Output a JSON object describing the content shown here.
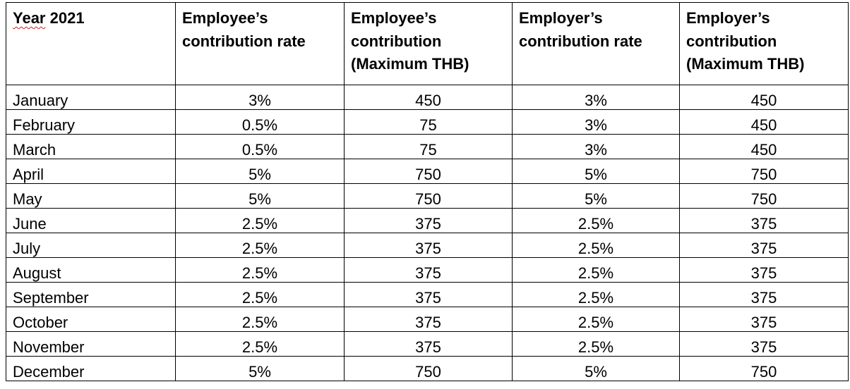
{
  "table": {
    "header": {
      "col0_word": "Year",
      "col0_rest": " 2021",
      "col1": [
        "Employee’s",
        "contribution rate"
      ],
      "col2": [
        "Employee’s",
        "contribution",
        "(Maximum THB)"
      ],
      "col3": [
        "Employer’s",
        "contribution rate"
      ],
      "col4": [
        "Employer’s",
        "contribution",
        "(Maximum THB)"
      ]
    },
    "rows": [
      {
        "month": "January",
        "ee_rate": "3%",
        "ee_max": "450",
        "er_rate": "3%",
        "er_max": "450"
      },
      {
        "month": "February",
        "ee_rate": "0.5%",
        "ee_max": "75",
        "er_rate": "3%",
        "er_max": "450"
      },
      {
        "month": "March",
        "ee_rate": "0.5%",
        "ee_max": "75",
        "er_rate": "3%",
        "er_max": "450"
      },
      {
        "month": "April",
        "ee_rate": "5%",
        "ee_max": "750",
        "er_rate": "5%",
        "er_max": "750"
      },
      {
        "month": "May",
        "ee_rate": "5%",
        "ee_max": "750",
        "er_rate": "5%",
        "er_max": "750"
      },
      {
        "month": "June",
        "ee_rate": "2.5%",
        "ee_max": "375",
        "er_rate": "2.5%",
        "er_max": "375"
      },
      {
        "month": "July",
        "ee_rate": "2.5%",
        "ee_max": "375",
        "er_rate": "2.5%",
        "er_max": "375"
      },
      {
        "month": "August",
        "ee_rate": "2.5%",
        "ee_max": "375",
        "er_rate": "2.5%",
        "er_max": "375"
      },
      {
        "month": "September",
        "ee_rate": "2.5%",
        "ee_max": "375",
        "er_rate": "2.5%",
        "er_max": "375"
      },
      {
        "month": "October",
        "ee_rate": "2.5%",
        "ee_max": "375",
        "er_rate": "2.5%",
        "er_max": "375"
      },
      {
        "month": "November",
        "ee_rate": "2.5%",
        "ee_max": "375",
        "er_rate": "2.5%",
        "er_max": "375"
      },
      {
        "month": "December",
        "ee_rate": "5%",
        "ee_max": "750",
        "er_rate": "5%",
        "er_max": "750"
      }
    ]
  },
  "colors": {
    "text": "#000000",
    "border": "#000000",
    "spellcheck_squiggle": "#d02020",
    "background": "#ffffff"
  }
}
